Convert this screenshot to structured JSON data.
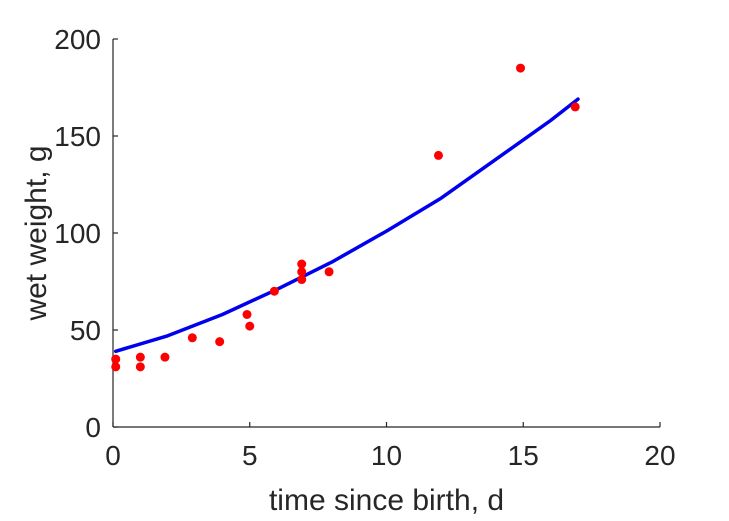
{
  "chart_data": {
    "type": "scatter",
    "title": "",
    "xlabel": "time since birth, d",
    "ylabel": "wet weight, g",
    "xlim": [
      0,
      20
    ],
    "ylim": [
      0,
      200
    ],
    "xticks": [
      0,
      5,
      10,
      15,
      20
    ],
    "yticks": [
      0,
      50,
      100,
      150,
      200
    ],
    "grid": false,
    "legend": "none",
    "series": [
      {
        "kind": "scatter",
        "color": "#ff0000",
        "points": [
          [
            0.1,
            35
          ],
          [
            0.1,
            31
          ],
          [
            1.0,
            36
          ],
          [
            1.0,
            31
          ],
          [
            1.9,
            36
          ],
          [
            2.9,
            46
          ],
          [
            3.9,
            44
          ],
          [
            4.9,
            58
          ],
          [
            5.0,
            52
          ],
          [
            5.9,
            70
          ],
          [
            6.9,
            84
          ],
          [
            6.9,
            80
          ],
          [
            6.9,
            76
          ],
          [
            7.9,
            80
          ],
          [
            11.9,
            140
          ],
          [
            14.9,
            185
          ],
          [
            16.9,
            165
          ]
        ]
      },
      {
        "kind": "line",
        "color": "#0000ee",
        "points": [
          [
            0.1,
            39
          ],
          [
            2,
            47
          ],
          [
            4,
            58
          ],
          [
            6,
            71
          ],
          [
            8,
            85
          ],
          [
            10,
            101
          ],
          [
            12,
            118
          ],
          [
            14,
            138
          ],
          [
            16,
            158
          ],
          [
            17,
            169
          ]
        ]
      }
    ]
  }
}
